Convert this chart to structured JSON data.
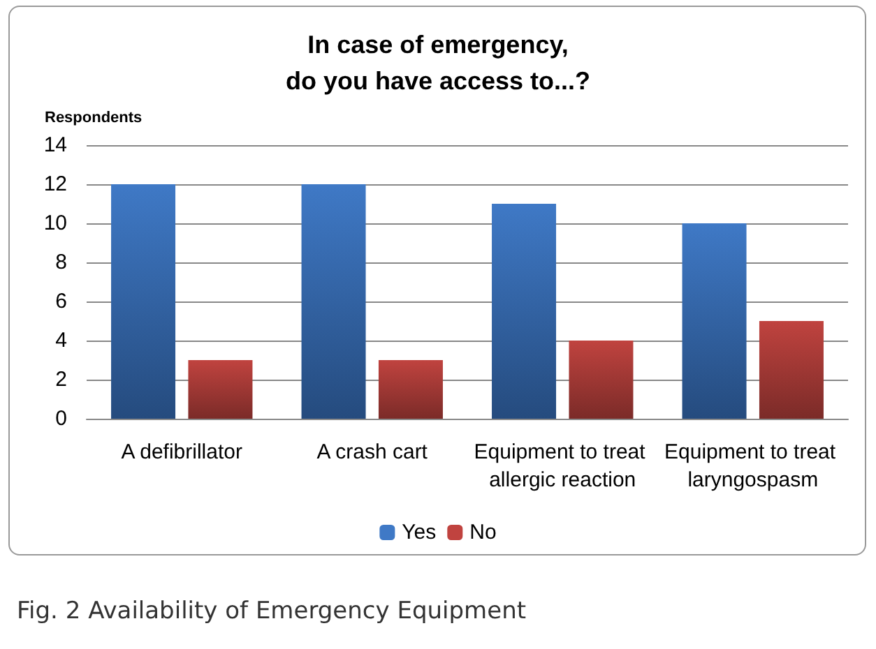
{
  "chart_data": {
    "type": "bar",
    "title": "In case of emergency,\ndo you have access to...?",
    "ylabel": "Respondents",
    "categories": [
      "A defibrillator",
      "A crash cart",
      "Equipment to treat allergic reaction",
      "Equipment to treat laryngospasm"
    ],
    "series": [
      {
        "name": "Yes",
        "color": "#3f79c6",
        "values": [
          12,
          12,
          11,
          10
        ]
      },
      {
        "name": "No",
        "color": "#c0433f",
        "values": [
          3,
          3,
          4,
          5
        ]
      }
    ],
    "ylim": [
      0,
      14
    ],
    "yticks": [
      0,
      2,
      4,
      6,
      8,
      10,
      12,
      14
    ],
    "grid": "y",
    "legend": "bottom",
    "annotations": [
      "Fig. 2 Availability of Emergency Equipment"
    ]
  }
}
